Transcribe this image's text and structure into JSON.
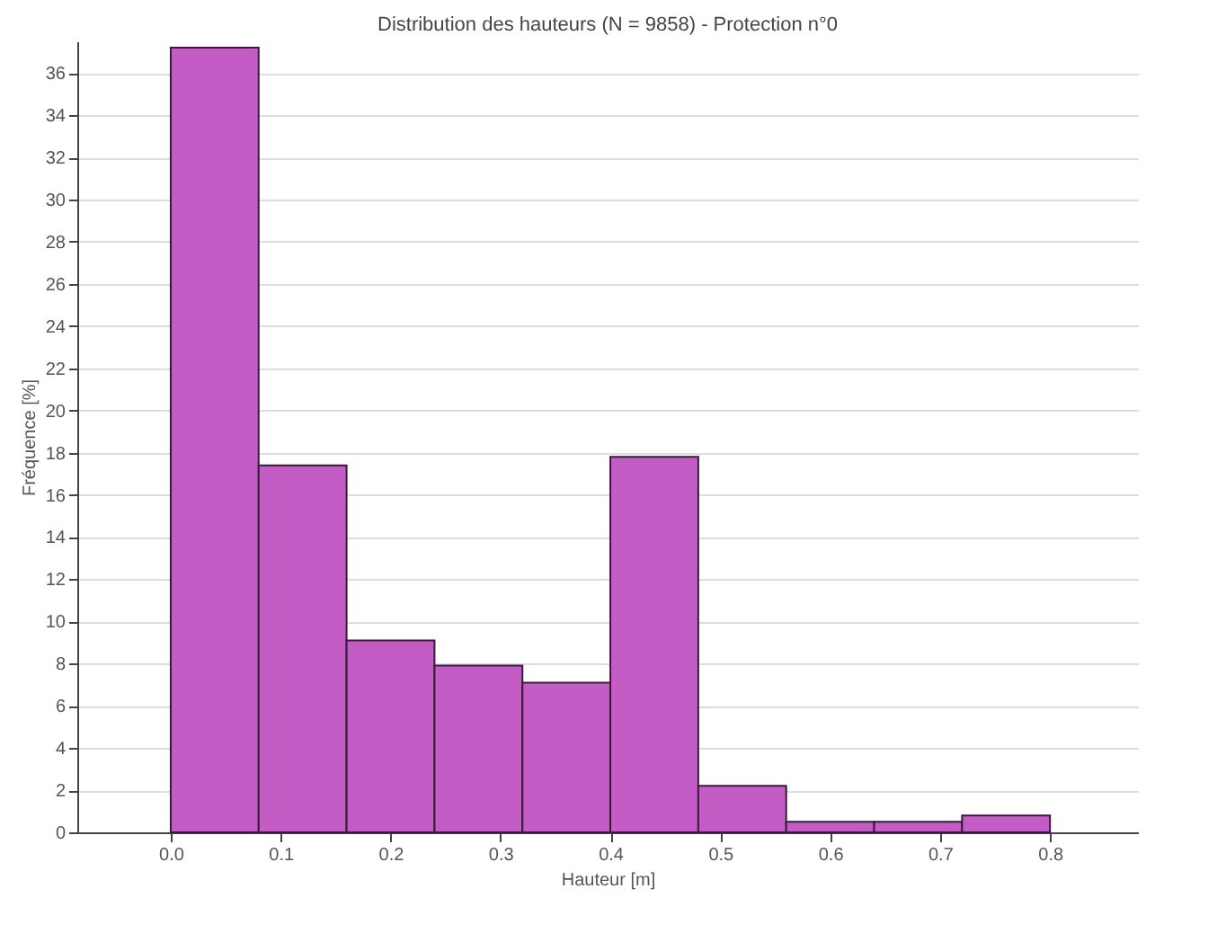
{
  "chart_data": {
    "type": "histogram",
    "title": "Distribution des hauteurs (N = 9858) - Protection n°0",
    "xlabel": "Hauteur [m]",
    "ylabel": "Fréquence [%]",
    "bins": [
      0,
      0.08,
      0.16,
      0.24,
      0.32,
      0.4,
      0.48,
      0.56,
      0.64,
      0.72,
      0.8
    ],
    "values": [
      37.2,
      17.4,
      9.1,
      7.9,
      7.1,
      17.8,
      2.2,
      0.5,
      0.5,
      0.8
    ],
    "color": "#c45cc6",
    "xlim": [
      -0.085,
      0.88
    ],
    "xticks": [
      {
        "value": 0,
        "label": "0.0"
      },
      0.1,
      0.2,
      0.3,
      0.4,
      0.5,
      0.6,
      0.7,
      0.8
    ],
    "ylim": [
      0,
      37.5
    ],
    "yticks": [
      0,
      2,
      4,
      6,
      8,
      10,
      12,
      14,
      16,
      18,
      20,
      22,
      24,
      26,
      28,
      30,
      32,
      34,
      36
    ],
    "grid": "y"
  }
}
